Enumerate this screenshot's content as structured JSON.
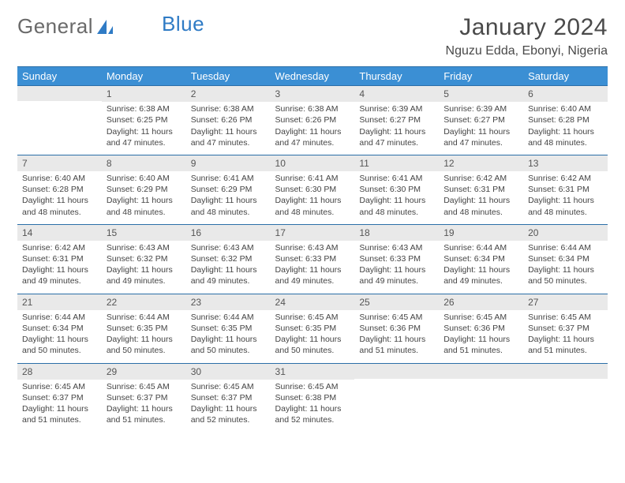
{
  "brand": {
    "part1": "General",
    "part2": "Blue"
  },
  "title": "January 2024",
  "location": "Nguzu Edda, Ebonyi, Nigeria",
  "colors": {
    "header_bg": "#3b8fd4",
    "header_border": "#2b6fa8",
    "daynum_bg": "#e9e9e9",
    "text": "#444444"
  },
  "weekdays": [
    "Sunday",
    "Monday",
    "Tuesday",
    "Wednesday",
    "Thursday",
    "Friday",
    "Saturday"
  ],
  "weeks": [
    [
      null,
      {
        "n": "1",
        "sr": "Sunrise: 6:38 AM",
        "ss": "Sunset: 6:25 PM",
        "dl1": "Daylight: 11 hours",
        "dl2": "and 47 minutes."
      },
      {
        "n": "2",
        "sr": "Sunrise: 6:38 AM",
        "ss": "Sunset: 6:26 PM",
        "dl1": "Daylight: 11 hours",
        "dl2": "and 47 minutes."
      },
      {
        "n": "3",
        "sr": "Sunrise: 6:38 AM",
        "ss": "Sunset: 6:26 PM",
        "dl1": "Daylight: 11 hours",
        "dl2": "and 47 minutes."
      },
      {
        "n": "4",
        "sr": "Sunrise: 6:39 AM",
        "ss": "Sunset: 6:27 PM",
        "dl1": "Daylight: 11 hours",
        "dl2": "and 47 minutes."
      },
      {
        "n": "5",
        "sr": "Sunrise: 6:39 AM",
        "ss": "Sunset: 6:27 PM",
        "dl1": "Daylight: 11 hours",
        "dl2": "and 47 minutes."
      },
      {
        "n": "6",
        "sr": "Sunrise: 6:40 AM",
        "ss": "Sunset: 6:28 PM",
        "dl1": "Daylight: 11 hours",
        "dl2": "and 48 minutes."
      }
    ],
    [
      {
        "n": "7",
        "sr": "Sunrise: 6:40 AM",
        "ss": "Sunset: 6:28 PM",
        "dl1": "Daylight: 11 hours",
        "dl2": "and 48 minutes."
      },
      {
        "n": "8",
        "sr": "Sunrise: 6:40 AM",
        "ss": "Sunset: 6:29 PM",
        "dl1": "Daylight: 11 hours",
        "dl2": "and 48 minutes."
      },
      {
        "n": "9",
        "sr": "Sunrise: 6:41 AM",
        "ss": "Sunset: 6:29 PM",
        "dl1": "Daylight: 11 hours",
        "dl2": "and 48 minutes."
      },
      {
        "n": "10",
        "sr": "Sunrise: 6:41 AM",
        "ss": "Sunset: 6:30 PM",
        "dl1": "Daylight: 11 hours",
        "dl2": "and 48 minutes."
      },
      {
        "n": "11",
        "sr": "Sunrise: 6:41 AM",
        "ss": "Sunset: 6:30 PM",
        "dl1": "Daylight: 11 hours",
        "dl2": "and 48 minutes."
      },
      {
        "n": "12",
        "sr": "Sunrise: 6:42 AM",
        "ss": "Sunset: 6:31 PM",
        "dl1": "Daylight: 11 hours",
        "dl2": "and 48 minutes."
      },
      {
        "n": "13",
        "sr": "Sunrise: 6:42 AM",
        "ss": "Sunset: 6:31 PM",
        "dl1": "Daylight: 11 hours",
        "dl2": "and 48 minutes."
      }
    ],
    [
      {
        "n": "14",
        "sr": "Sunrise: 6:42 AM",
        "ss": "Sunset: 6:31 PM",
        "dl1": "Daylight: 11 hours",
        "dl2": "and 49 minutes."
      },
      {
        "n": "15",
        "sr": "Sunrise: 6:43 AM",
        "ss": "Sunset: 6:32 PM",
        "dl1": "Daylight: 11 hours",
        "dl2": "and 49 minutes."
      },
      {
        "n": "16",
        "sr": "Sunrise: 6:43 AM",
        "ss": "Sunset: 6:32 PM",
        "dl1": "Daylight: 11 hours",
        "dl2": "and 49 minutes."
      },
      {
        "n": "17",
        "sr": "Sunrise: 6:43 AM",
        "ss": "Sunset: 6:33 PM",
        "dl1": "Daylight: 11 hours",
        "dl2": "and 49 minutes."
      },
      {
        "n": "18",
        "sr": "Sunrise: 6:43 AM",
        "ss": "Sunset: 6:33 PM",
        "dl1": "Daylight: 11 hours",
        "dl2": "and 49 minutes."
      },
      {
        "n": "19",
        "sr": "Sunrise: 6:44 AM",
        "ss": "Sunset: 6:34 PM",
        "dl1": "Daylight: 11 hours",
        "dl2": "and 49 minutes."
      },
      {
        "n": "20",
        "sr": "Sunrise: 6:44 AM",
        "ss": "Sunset: 6:34 PM",
        "dl1": "Daylight: 11 hours",
        "dl2": "and 50 minutes."
      }
    ],
    [
      {
        "n": "21",
        "sr": "Sunrise: 6:44 AM",
        "ss": "Sunset: 6:34 PM",
        "dl1": "Daylight: 11 hours",
        "dl2": "and 50 minutes."
      },
      {
        "n": "22",
        "sr": "Sunrise: 6:44 AM",
        "ss": "Sunset: 6:35 PM",
        "dl1": "Daylight: 11 hours",
        "dl2": "and 50 minutes."
      },
      {
        "n": "23",
        "sr": "Sunrise: 6:44 AM",
        "ss": "Sunset: 6:35 PM",
        "dl1": "Daylight: 11 hours",
        "dl2": "and 50 minutes."
      },
      {
        "n": "24",
        "sr": "Sunrise: 6:45 AM",
        "ss": "Sunset: 6:35 PM",
        "dl1": "Daylight: 11 hours",
        "dl2": "and 50 minutes."
      },
      {
        "n": "25",
        "sr": "Sunrise: 6:45 AM",
        "ss": "Sunset: 6:36 PM",
        "dl1": "Daylight: 11 hours",
        "dl2": "and 51 minutes."
      },
      {
        "n": "26",
        "sr": "Sunrise: 6:45 AM",
        "ss": "Sunset: 6:36 PM",
        "dl1": "Daylight: 11 hours",
        "dl2": "and 51 minutes."
      },
      {
        "n": "27",
        "sr": "Sunrise: 6:45 AM",
        "ss": "Sunset: 6:37 PM",
        "dl1": "Daylight: 11 hours",
        "dl2": "and 51 minutes."
      }
    ],
    [
      {
        "n": "28",
        "sr": "Sunrise: 6:45 AM",
        "ss": "Sunset: 6:37 PM",
        "dl1": "Daylight: 11 hours",
        "dl2": "and 51 minutes."
      },
      {
        "n": "29",
        "sr": "Sunrise: 6:45 AM",
        "ss": "Sunset: 6:37 PM",
        "dl1": "Daylight: 11 hours",
        "dl2": "and 51 minutes."
      },
      {
        "n": "30",
        "sr": "Sunrise: 6:45 AM",
        "ss": "Sunset: 6:37 PM",
        "dl1": "Daylight: 11 hours",
        "dl2": "and 52 minutes."
      },
      {
        "n": "31",
        "sr": "Sunrise: 6:45 AM",
        "ss": "Sunset: 6:38 PM",
        "dl1": "Daylight: 11 hours",
        "dl2": "and 52 minutes."
      },
      null,
      null,
      null
    ]
  ]
}
